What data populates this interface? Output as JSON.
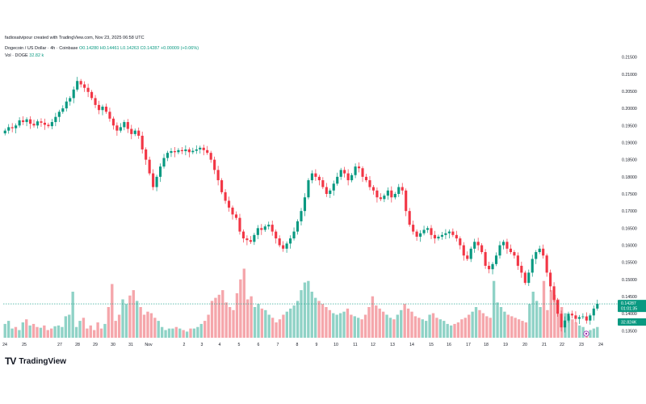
{
  "header": {
    "created_by": "fadiosatvipour created with TradingView.com, Nov 23, 2025 06:58 UTC"
  },
  "symbol": {
    "name": "Dogecoin / US Dollar · 4h · Coinbase",
    "ohlc": "O0.14280 H0.14461 L0.14263 C0.14287 +0.00009 (+0.06%)"
  },
  "volume_label": {
    "name": "Vol · DOGE",
    "value": "32.82 k"
  },
  "price_badge": {
    "value": "0.14287",
    "countdown": "01:01:35",
    "color": "#089981"
  },
  "volume_badge": {
    "value": "32.824K",
    "color": "#089981"
  },
  "brand": {
    "mark": "TV",
    "name": "TradingView"
  },
  "colors": {
    "up": "#089981",
    "down": "#f23645",
    "vol_up": "#8fd2c6",
    "vol_down": "#f5a6ab"
  },
  "chart_data": {
    "type": "candlestick",
    "y_axis_ticks": [
      "0.21500",
      "0.21000",
      "0.20500",
      "0.20000",
      "0.19500",
      "0.19000",
      "0.18500",
      "0.18000",
      "0.17500",
      "0.17000",
      "0.16500",
      "0.16000",
      "0.15500",
      "0.15000",
      "0.14500",
      "0.14000",
      "0.13500"
    ],
    "ylim": [
      0.1325,
      0.2175
    ],
    "x_axis_ticks": [
      "24",
      "25",
      "27",
      "28",
      "29",
      "30",
      "31",
      "Nov",
      "2",
      "3",
      "4",
      "5",
      "6",
      "7",
      "8",
      "9",
      "10",
      "11",
      "12",
      "13",
      "14",
      "15",
      "16",
      "17",
      "18",
      "19",
      "20",
      "21",
      "22",
      "23",
      "24"
    ],
    "last_price": 0.14287,
    "close_series": [
      0.1935,
      0.1945,
      0.1942,
      0.195,
      0.1965,
      0.196,
      0.1968,
      0.1955,
      0.195,
      0.1962,
      0.1958,
      0.1952,
      0.1948,
      0.196,
      0.1975,
      0.199,
      0.2,
      0.202,
      0.203,
      0.2055,
      0.208,
      0.207,
      0.206,
      0.2048,
      0.203,
      0.201,
      0.1995,
      0.2005,
      0.199,
      0.197,
      0.195,
      0.1935,
      0.1945,
      0.196,
      0.194,
      0.1925,
      0.1935,
      0.192,
      0.188,
      0.185,
      0.181,
      0.177,
      0.18,
      0.183,
      0.1855,
      0.187,
      0.1875,
      0.1872,
      0.1878,
      0.1875,
      0.188,
      0.1872,
      0.1876,
      0.188,
      0.1885,
      0.1878,
      0.187,
      0.185,
      0.182,
      0.179,
      0.1755,
      0.173,
      0.171,
      0.169,
      0.168,
      0.164,
      0.162,
      0.1615,
      0.161,
      0.163,
      0.165,
      0.1645,
      0.1655,
      0.166,
      0.164,
      0.162,
      0.16,
      0.159,
      0.1605,
      0.162,
      0.164,
      0.167,
      0.17,
      0.174,
      0.179,
      0.181,
      0.18,
      0.179,
      0.177,
      0.175,
      0.176,
      0.178,
      0.18,
      0.182,
      0.181,
      0.179,
      0.1805,
      0.183,
      0.1825,
      0.18,
      0.179,
      0.177,
      0.176,
      0.174,
      0.1735,
      0.1745,
      0.176,
      0.174,
      0.175,
      0.177,
      0.176,
      0.17,
      0.166,
      0.164,
      0.1625,
      0.1635,
      0.1645,
      0.165,
      0.163,
      0.162,
      0.1625,
      0.163,
      0.1635,
      0.164,
      0.163,
      0.162,
      0.16,
      0.157,
      0.156,
      0.159,
      0.161,
      0.16,
      0.158,
      0.154,
      0.153,
      0.1545,
      0.157,
      0.16,
      0.161,
      0.159,
      0.158,
      0.157,
      0.154,
      0.152,
      0.149,
      0.152,
      0.156,
      0.158,
      0.159,
      0.157,
      0.152,
      0.148,
      0.144,
      0.14,
      0.136,
      0.138,
      0.14,
      0.1395,
      0.1385,
      0.139,
      0.1392,
      0.138,
      0.1395,
      0.1415,
      0.1429
    ]
  },
  "volume_data": {
    "values": [
      18,
      22,
      12,
      14,
      10,
      20,
      24,
      16,
      18,
      14,
      13,
      16,
      10,
      12,
      15,
      16,
      14,
      28,
      30,
      60,
      14,
      22,
      26,
      12,
      16,
      10,
      20,
      12,
      18,
      40,
      70,
      22,
      30,
      50,
      44,
      55,
      62,
      48,
      40,
      30,
      34,
      32,
      26,
      22,
      14,
      10,
      12,
      12,
      14,
      12,
      10,
      8,
      12,
      12,
      14,
      18,
      22,
      30,
      48,
      52,
      56,
      62,
      46,
      40,
      36,
      58,
      76,
      90,
      50,
      54,
      40,
      44,
      38,
      36,
      30,
      26,
      20,
      24,
      30,
      34,
      38,
      42,
      48,
      62,
      72,
      74,
      60,
      52,
      48,
      44,
      40,
      36,
      32,
      30,
      32,
      34,
      38,
      30,
      28,
      26,
      24,
      30,
      40,
      54,
      42,
      38,
      34,
      30,
      26,
      24,
      30,
      36,
      44,
      38,
      34,
      28,
      26,
      24,
      22,
      30,
      32,
      26,
      24,
      22,
      18,
      16,
      18,
      20,
      24,
      26,
      30,
      34,
      40,
      36,
      32,
      28,
      26,
      74,
      46,
      40,
      34,
      30,
      28,
      26,
      24,
      22,
      20,
      44,
      60,
      48,
      40,
      74,
      36,
      62,
      56,
      50,
      40,
      32,
      28,
      24,
      20,
      16,
      14,
      8,
      10,
      12,
      14
    ]
  }
}
